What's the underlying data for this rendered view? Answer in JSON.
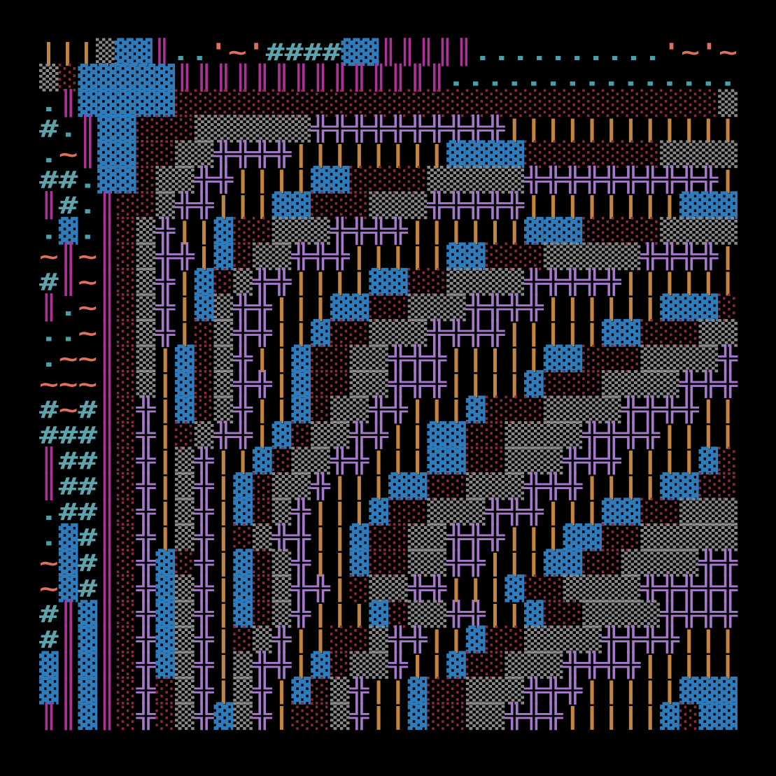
{
  "grid": {
    "palette": {
      "▓": "#2e7cbc",
      "▒": "#8a8a8a",
      "░": "#8c2a3c",
      "║": "#b0309a",
      "╬": "#a678cc",
      "|": "#c2843e",
      "#": "#5fa4ac",
      ".": "#4aa0a8",
      "~": "#e0705c",
      "'": "#e0705c"
    },
    "rows": [
      "|||▒▓▓║..'~'####▓▓║║║║║..........'~'~",
      "▒░▓▓▓▓▓║║║║║║║║║║║║║║...............",
      ".║▓▓▓▓▓░░░░░░░░░░░░░░░░░░░░░░░░░░░░▒",
      "#.║▓▓░░░▒▒▒▒▒▒╬╬╬╬╬╬╬╬╬╬||||||||||||",
      ".~║▓▓░░▒▒╬╬╬╬||||||||▓▓▓▓░░░░░░░▒▒▒▒",
      "##.▓▓░▒▒╬╬||||▓▓░░░░▒▒▒▒▒╬╬╬╬╬╬╬╬╬╬|",
      "║#.║░░▒╬╬|||▓▓░░░▒▒▒╬╬╬╬╬||||||||▓▓▓",
      ".▓.║░▒╬||▓░░▒▒▒╬╬╬╬||||||▓▓▓░░░░▒▒▒▒",
      "~║~║░▒╬╬|▓░▒▒╬╬╬|||||▓▓░░░▒▒▒▒▒╬╬╬╬|",
      "#║~║░▒╬|▓░▒╬╬||||▓▓░░▒▒▒▒╬╬╬╬╬||||||",
      "║.~║░▒╬|▓▒╬╬|||▓▓░░▒▒▒╬╬╬╬||||||▓▓▓░",
      "..~║░▒╬|░▒╬╬||▓░░▒▒▒╬╬╬╬|||||▓▓░░░▒▒",
      ".~~║░▒|▓░▒╬||▓░░▒▒╬╬╬|||||▓▓░░░▒▒▒▒╬",
      "~~~║░▒|▓░▒╬╬|▓░░▒▒╬╬╬||||▓░░░▒▒▒▒╬╬╬",
      "#~#║░╬|▓░▒╬||▓░▒▒╬╬|||▓░░░▒▒▒▒╬╬╬╬||",
      "###║░╬|░▒╬╬|▓░▒▒╬╬||▓▓░░▒▒▒▒╬╬╬╬||||",
      "║##║░╬|▒╬||▓░▒▒╬╬|||▓▓░░▒▒▒╬╬╬||||▓░",
      "║##║░╬|▒╬|▓░▒▒╬|||▓▓░░▒▒▒╬╬╬||||▓▓░░",
      ".##║░╬|▒╬|▓░▒╬|||▓░░▒▒▒╬╬╬|||▓▓░░▒▒▒",
      ".▓#║░╬|▒╬|░▒╬╬||▓░░▒▒╬╬╬|||▓▓░░▒▒▒▒▒",
      "~▓#║░╬▓░╬|▓░▒╬||▓░░▒▒╬╬|||▓▓░░▒▒▒▒╬╬",
      "~▓#║░╬▓▒╬|▓░▒╬╬|░▒▒╬╬|||▓░░▒▒▒▒╬╬╬╬╬",
      "#║▓║░╬▓▒╬|▓░▒╬|||▓░▒▒╬╬||▓░░▒▒▒▒╬╬╬╬",
      "#║▓║░╬▓▒╬|░▒╬||░░▒╬╬||▓░░▒▒▒▒╬╬╬╬|||",
      "▓║▓║░╬▓▒╬|▒╬╬|▓░▒▒╬||▓░░▒▒▒╬╬╬╬|||||",
      "▓║▓║░╬░▒╬|▒╬|▓░▒╬||▓░░▒▒▒╬╬╬|||||▓▓▓",
      "║║▓║░╬░▒╬▓▒╬|░░▒╬||▓░░▒▒╬╬╬|||||▓░▓▓"
    ]
  }
}
